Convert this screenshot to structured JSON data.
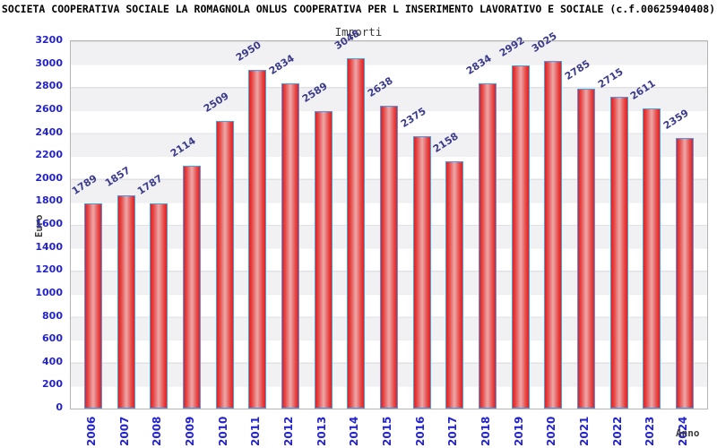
{
  "header": {
    "title": "SOCIETA COOPERATIVA SOCIALE LA ROMAGNOLA ONLUS COOPERATIVA PER L INSERIMENTO LAVORATIVO E SOCIALE (c.f.00625940408)",
    "subtitle": "Importi"
  },
  "chart_data": {
    "type": "bar",
    "title": "Importi",
    "xlabel": "Anno",
    "ylabel": "Euro",
    "categories": [
      "2006",
      "2007",
      "2008",
      "2009",
      "2010",
      "2011",
      "2012",
      "2013",
      "2014",
      "2015",
      "2016",
      "2017",
      "2018",
      "2019",
      "2020",
      "2021",
      "2022",
      "2023",
      "2024"
    ],
    "values": [
      1789,
      1857,
      1787,
      2114,
      2509,
      2950,
      2834,
      2589,
      3048,
      2638,
      2375,
      2158,
      2834,
      2992,
      3025,
      2785,
      2715,
      2611,
      2359
    ],
    "ylim": [
      0,
      3200
    ],
    "ytick_step": 200,
    "grid": "horizontal-bands",
    "legend": "none",
    "colors": {
      "bar_edge": "#e2201f",
      "bar_center": "#eda9a9",
      "bar_border": "#4a9de8",
      "axis_label_blue": "#2424cc",
      "value_label_navy": "#3c3c8c",
      "band_gray": "#f1f1f4",
      "band_white": "#ffffff",
      "plot_border": "#b5b5b5"
    }
  }
}
